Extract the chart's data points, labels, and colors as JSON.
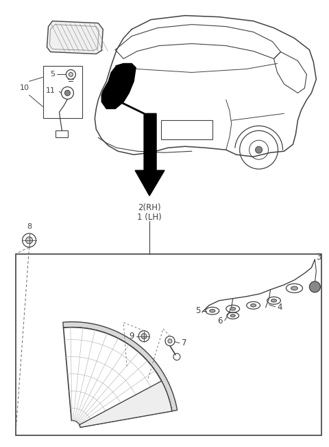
{
  "bg_color": "#ffffff",
  "line_color": "#404040",
  "fig_width": 4.8,
  "fig_height": 6.51
}
